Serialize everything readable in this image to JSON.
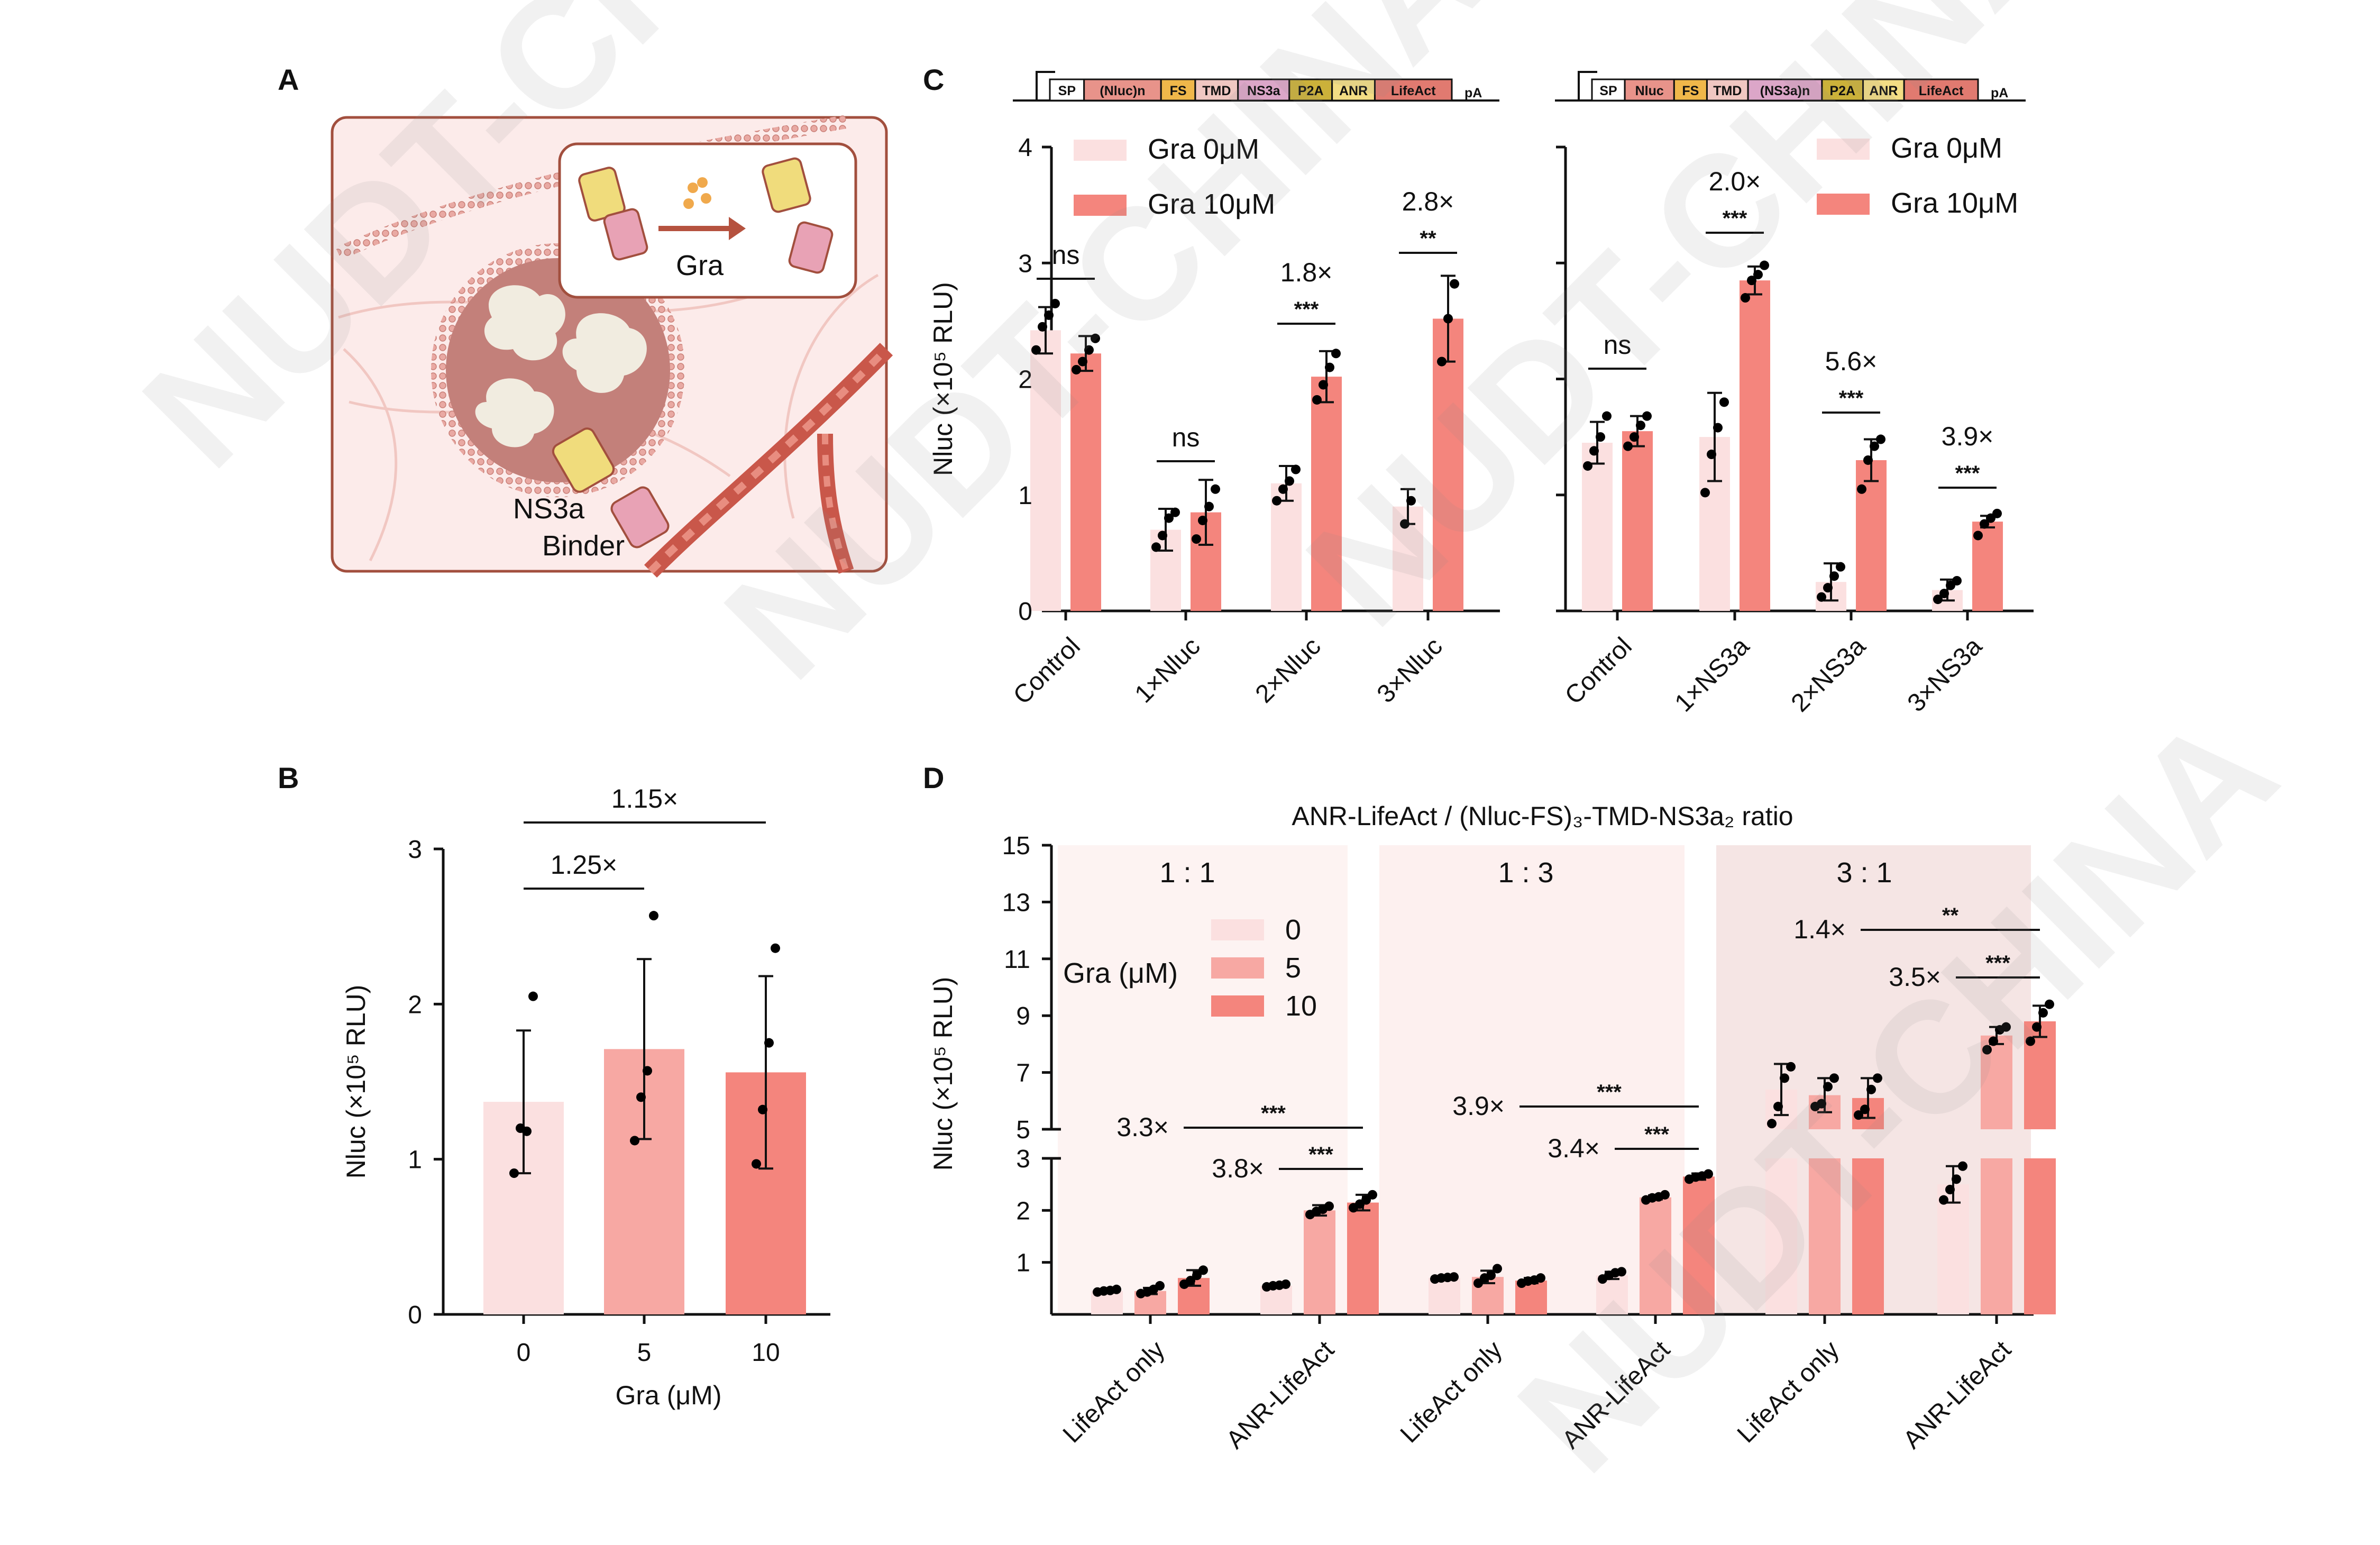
{
  "panel_labels": {
    "a": "A",
    "b": "B",
    "c": "C",
    "d": "D"
  },
  "watermark": "NUDT-CHINA",
  "colors": {
    "gra0": "#fbe0e0",
    "gra5": "#f7a8a3",
    "gra10": "#f4857d",
    "axis": "#111111",
    "cell_bg": "#fcebea",
    "cell_border": "#a24f3e"
  },
  "panel_a": {
    "drug_label": "Gra",
    "binder_line1": "NS3a",
    "binder_line2": "Binder"
  },
  "constructs": {
    "left": [
      "SP",
      "(Nluc)n",
      "FS",
      "TMD",
      "NS3a",
      "P2A",
      "ANR",
      "LifeAct",
      "pA"
    ],
    "right": [
      "SP",
      "Nluc",
      "FS",
      "TMD",
      "(NS3a)n",
      "P2A",
      "ANR",
      "LifeAct",
      "pA"
    ]
  },
  "chart_data": [
    {
      "id": "B",
      "type": "bar",
      "categories": [
        "0",
        "5",
        "10"
      ],
      "values": [
        1.37,
        1.71,
        1.56
      ],
      "errors": [
        0.46,
        0.58,
        0.62
      ],
      "points": [
        [
          0.91,
          1.2,
          1.18,
          2.05
        ],
        [
          1.12,
          1.4,
          1.57,
          2.57
        ],
        [
          0.97,
          1.32,
          1.75,
          2.36
        ]
      ],
      "xlabel": "Gra (μM)",
      "ylabel": "Nluc (×10⁵ RLU)",
      "ylim": [
        0,
        3
      ],
      "yticks": [
        "0",
        "1",
        "2",
        "3"
      ],
      "comparisons": [
        {
          "between": [
            "0",
            "5"
          ],
          "label": "1.25×"
        },
        {
          "between": [
            "0",
            "10"
          ],
          "label": "1.15×"
        }
      ]
    },
    {
      "id": "C-left",
      "type": "bar",
      "categories": [
        "Control",
        "1×Nluc",
        "2×Nluc",
        "3×Nluc"
      ],
      "series": [
        {
          "name": "Gra 0μM",
          "values": [
            2.42,
            0.7,
            1.1,
            0.9
          ],
          "errors": [
            0.2,
            0.18,
            0.15,
            0.15
          ]
        },
        {
          "name": "Gra 10μM",
          "values": [
            2.22,
            0.85,
            2.02,
            2.52
          ],
          "errors": [
            0.15,
            0.28,
            0.22,
            0.37
          ]
        }
      ],
      "points": [
        [
          [
            2.25,
            2.45,
            2.55,
            2.65
          ],
          [
            2.08,
            2.15,
            2.25,
            2.35
          ]
        ],
        [
          [
            0.55,
            0.65,
            0.8,
            0.85
          ],
          [
            0.62,
            0.78,
            0.9,
            1.05
          ]
        ],
        [
          [
            0.95,
            1.05,
            1.12,
            1.22
          ],
          [
            1.82,
            1.95,
            2.1,
            2.22
          ]
        ],
        [
          [
            0.75,
            0.95
          ],
          [
            2.15,
            2.52,
            2.82
          ]
        ]
      ],
      "ylabel": "Nluc (×10⁵ RLU)",
      "ylim": [
        0,
        4
      ],
      "yticks": [
        "0",
        "1",
        "2",
        "3",
        "4"
      ],
      "annotations": [
        {
          "category": "Control",
          "fold": "",
          "sig": "ns"
        },
        {
          "category": "1×Nluc",
          "fold": "",
          "sig": "ns"
        },
        {
          "category": "2×Nluc",
          "fold": "1.8×",
          "sig": "***"
        },
        {
          "category": "3×Nluc",
          "fold": "2.8×",
          "sig": "**"
        }
      ]
    },
    {
      "id": "C-right",
      "type": "bar",
      "categories": [
        "Control",
        "1×NS3a",
        "2×NS3a",
        "3×NS3a"
      ],
      "series": [
        {
          "name": "Gra 0μM",
          "values": [
            1.45,
            1.5,
            0.25,
            0.18
          ],
          "errors": [
            0.18,
            0.38,
            0.16,
            0.09
          ]
        },
        {
          "name": "Gra 10μM",
          "values": [
            1.55,
            2.85,
            1.3,
            0.77
          ],
          "errors": [
            0.13,
            0.12,
            0.18,
            0.05
          ]
        }
      ],
      "points": [
        [
          [
            1.25,
            1.38,
            1.5,
            1.68
          ],
          [
            1.42,
            1.5,
            1.6,
            1.68
          ]
        ],
        [
          [
            1.02,
            1.35,
            1.58,
            1.8
          ],
          [
            2.7,
            2.85,
            2.9,
            2.98
          ]
        ],
        [
          [
            0.12,
            0.2,
            0.3,
            0.38
          ],
          [
            1.05,
            1.3,
            1.42,
            1.48
          ]
        ],
        [
          [
            0.1,
            0.15,
            0.22,
            0.26
          ],
          [
            0.65,
            0.75,
            0.8,
            0.84
          ]
        ]
      ],
      "ylim": [
        0,
        4
      ],
      "annotations": [
        {
          "category": "Control",
          "fold": "",
          "sig": "ns"
        },
        {
          "category": "1×NS3a",
          "fold": "2.0×",
          "sig": "***"
        },
        {
          "category": "2×NS3a",
          "fold": "5.6×",
          "sig": "***"
        },
        {
          "category": "3×NS3a",
          "fold": "3.9×",
          "sig": "***"
        }
      ]
    },
    {
      "id": "D",
      "type": "bar",
      "title": "ANR-LifeAct / (Nluc-FS)₃-TMD-NS3a₂ ratio",
      "ylabel": "Nluc (×10⁵ RLU)",
      "legend_title": "Gra (μM)",
      "series_names": [
        "0",
        "5",
        "10"
      ],
      "yaxis_break": {
        "lower": [
          0,
          3
        ],
        "upper": [
          5,
          15
        ]
      },
      "yticks_lower": [
        "1",
        "2",
        "3"
      ],
      "yticks_upper": [
        "5",
        "7",
        "9",
        "11",
        "13",
        "15"
      ],
      "groups": [
        {
          "ratio": "1 : 1",
          "categories": [
            "LifeAct only",
            "ANR-LifeAct"
          ],
          "values": [
            [
              0.45,
              0.45,
              0.7
            ],
            [
              0.55,
              2.0,
              2.15
            ]
          ],
          "errors": [
            [
              0.03,
              0.06,
              0.15
            ],
            [
              0.03,
              0.1,
              0.15
            ]
          ],
          "points": [
            [
              [
                0.43,
                0.45,
                0.46,
                0.48
              ],
              [
                0.4,
                0.43,
                0.48,
                0.55
              ],
              [
                0.58,
                0.65,
                0.75,
                0.85
              ]
            ],
            [
              [
                0.53,
                0.55,
                0.56,
                0.58
              ],
              [
                1.92,
                1.98,
                2.02,
                2.08
              ],
              [
                2.05,
                2.12,
                2.2,
                2.3
              ]
            ]
          ],
          "comparisons": [
            {
              "fold": "3.3×",
              "sig": "***"
            },
            {
              "fold": "3.8×",
              "sig": "***"
            }
          ]
        },
        {
          "ratio": "1 : 3",
          "categories": [
            "LifeAct only",
            "ANR-LifeAct"
          ],
          "values": [
            [
              0.7,
              0.72,
              0.65
            ],
            [
              0.75,
              2.25,
              2.65
            ]
          ],
          "errors": [
            [
              0.03,
              0.12,
              0.05
            ],
            [
              0.07,
              0.04,
              0.06
            ]
          ],
          "points": [
            [
              [
                0.68,
                0.7,
                0.71,
                0.72
              ],
              [
                0.6,
                0.7,
                0.75,
                0.88
              ],
              [
                0.6,
                0.64,
                0.66,
                0.7
              ]
            ],
            [
              [
                0.68,
                0.75,
                0.8,
                0.82
              ],
              [
                2.2,
                2.24,
                2.26,
                2.3
              ],
              [
                2.6,
                2.64,
                2.66,
                2.7
              ]
            ]
          ],
          "comparisons": [
            {
              "fold": "3.9×",
              "sig": "***"
            },
            {
              "fold": "3.4×",
              "sig": "***"
            }
          ]
        },
        {
          "ratio": "3 : 1",
          "categories": [
            "LifeAct only",
            "ANR-LifeAct"
          ],
          "values": [
            [
              6.4,
              6.2,
              6.1
            ],
            [
              2.5,
              8.3,
              8.8
            ]
          ],
          "errors": [
            [
              0.9,
              0.6,
              0.7
            ],
            [
              0.35,
              0.3,
              0.55
            ]
          ],
          "points": [
            [
              [
                5.2,
                5.8,
                6.8,
                7.2
              ],
              [
                5.8,
                5.9,
                6.5,
                6.8
              ],
              [
                5.5,
                5.7,
                6.4,
                6.8
              ]
            ],
            [
              [
                2.2,
                2.4,
                2.6,
                2.85
              ],
              [
                7.8,
                8.1,
                8.5,
                8.6
              ],
              [
                8.1,
                8.6,
                9.1,
                9.4
              ]
            ]
          ],
          "comparisons": [
            {
              "fold": "1.4×",
              "sig": "**"
            },
            {
              "fold": "3.5×",
              "sig": "***"
            }
          ]
        }
      ]
    }
  ]
}
